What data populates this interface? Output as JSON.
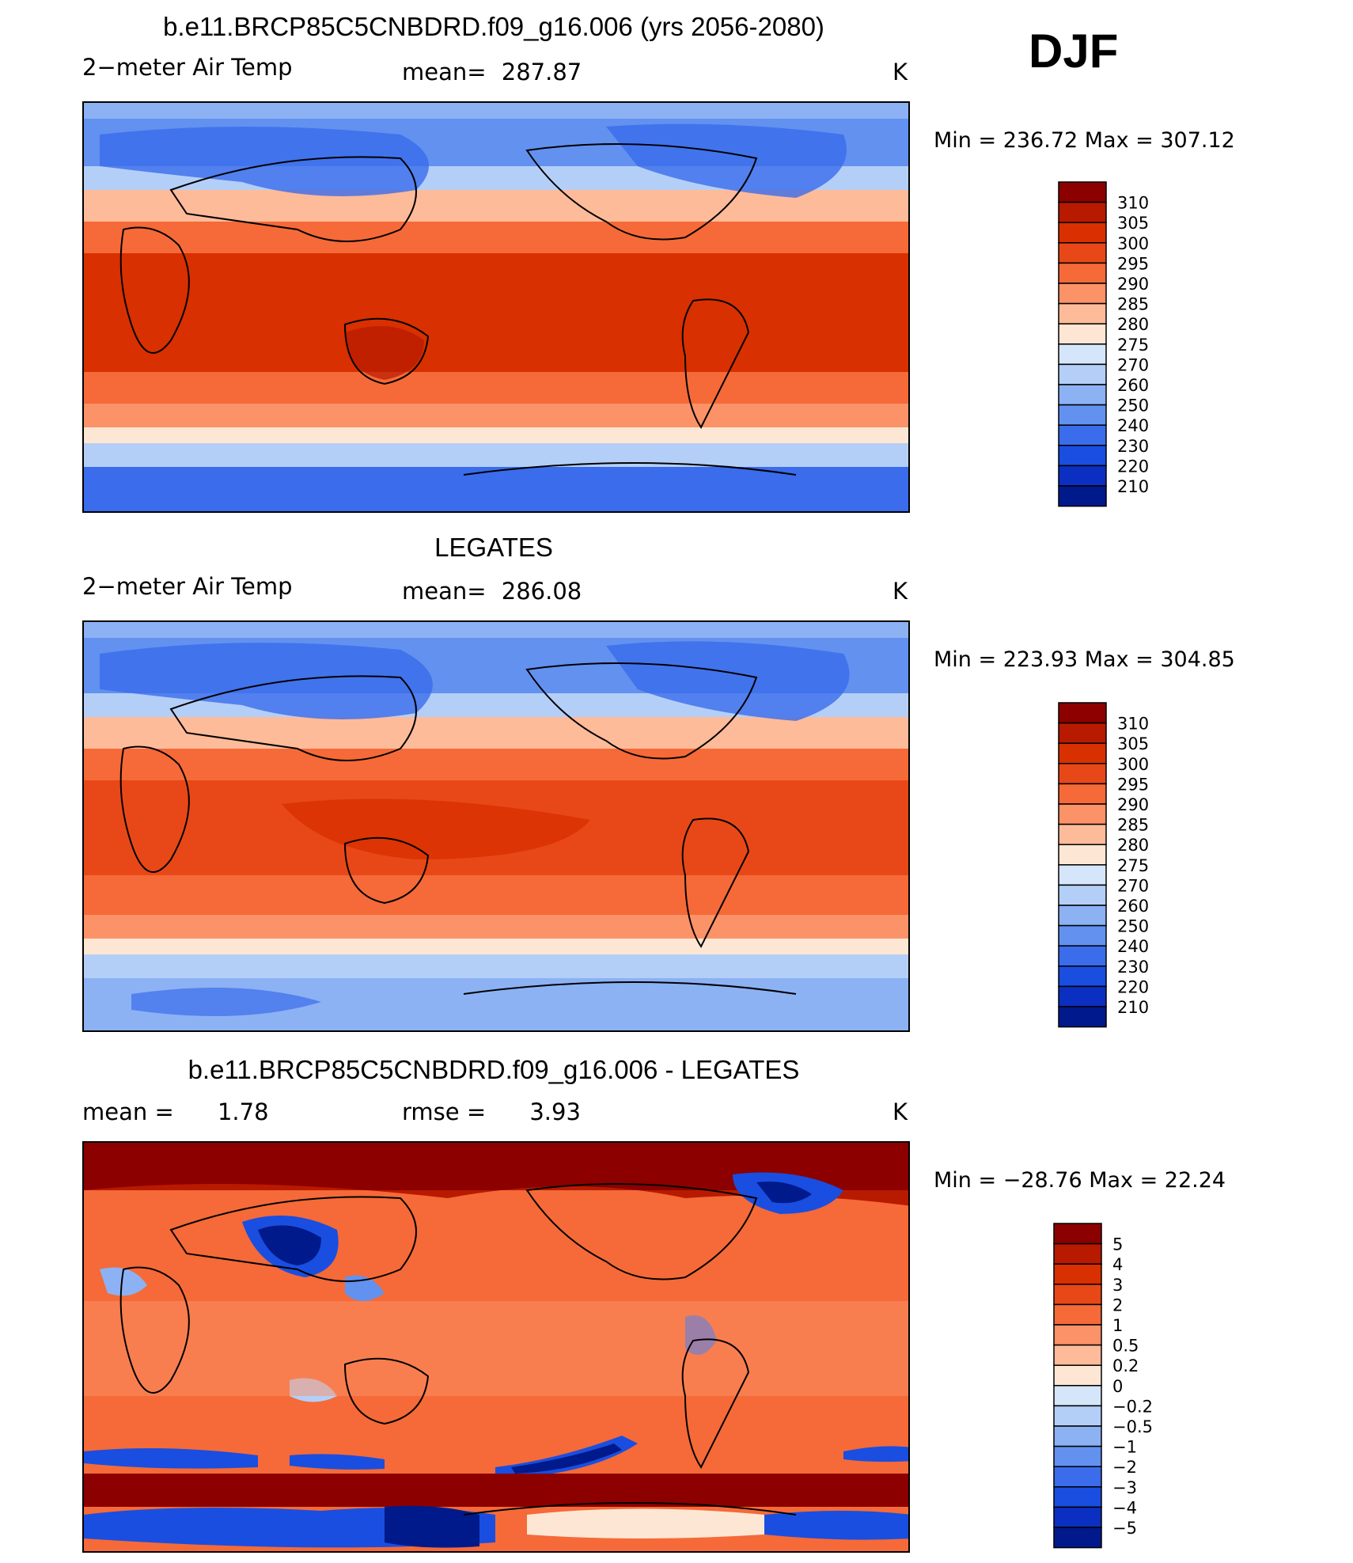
{
  "season": "DJF",
  "chart_data": [
    {
      "type": "heatmap",
      "title": "b.e11.BRCP85C5CNBDRD.f09_g16.006 (yrs 2056-2080)",
      "variable": "2−meter Air Temp",
      "stat_label": "mean=",
      "stat_value": "287.87",
      "units": "K",
      "min_max": "Min  =  236.72  Max  =  307.12",
      "colorbar_levels": [
        "310",
        "305",
        "300",
        "295",
        "290",
        "285",
        "280",
        "275",
        "270",
        "260",
        "250",
        "240",
        "230",
        "220",
        "210"
      ],
      "colors": [
        "#8c0000",
        "#b81a00",
        "#d83000",
        "#e84818",
        "#f56a38",
        "#fb9268",
        "#fdbb9a",
        "#fde7d4",
        "#d6e6fa",
        "#b4cff7",
        "#8cb2f4",
        "#6291f0",
        "#3a6ceb",
        "#1a4ee0",
        "#0b2fc0",
        "#001a8c"
      ]
    },
    {
      "type": "heatmap",
      "title": "LEGATES",
      "variable": "2−meter Air Temp",
      "stat_label": "mean=",
      "stat_value": "286.08",
      "units": "K",
      "min_max": "Min  =  223.93  Max  =  304.85",
      "colorbar_levels": [
        "310",
        "305",
        "300",
        "295",
        "290",
        "285",
        "280",
        "275",
        "270",
        "260",
        "250",
        "240",
        "230",
        "220",
        "210"
      ],
      "colors": [
        "#8c0000",
        "#b81a00",
        "#d83000",
        "#e84818",
        "#f56a38",
        "#fb9268",
        "#fdbb9a",
        "#fde7d4",
        "#d6e6fa",
        "#b4cff7",
        "#8cb2f4",
        "#6291f0",
        "#3a6ceb",
        "#1a4ee0",
        "#0b2fc0",
        "#001a8c"
      ]
    },
    {
      "type": "heatmap",
      "title": "b.e11.BRCP85C5CNBDRD.f09_g16.006 - LEGATES",
      "stat_label": "mean =",
      "stat_value": "1.78",
      "stat2_label": "rmse =",
      "stat2_value": "3.93",
      "units": "K",
      "min_max": "Min  =  −28.76  Max  =   22.24",
      "colorbar_levels": [
        "5",
        "4",
        "3",
        "2",
        "1",
        "0.5",
        "0.2",
        "0",
        "−0.2",
        "−0.5",
        "−1",
        "−2",
        "−3",
        "−4",
        "−5"
      ],
      "colors": [
        "#8c0000",
        "#b81a00",
        "#d83000",
        "#e84818",
        "#f56a38",
        "#fb9268",
        "#fdbb9a",
        "#fde7d4",
        "#d6e6fa",
        "#b4cff7",
        "#8cb2f4",
        "#6291f0",
        "#3a6ceb",
        "#1a4ee0",
        "#0b2fc0",
        "#001a8c"
      ]
    }
  ]
}
